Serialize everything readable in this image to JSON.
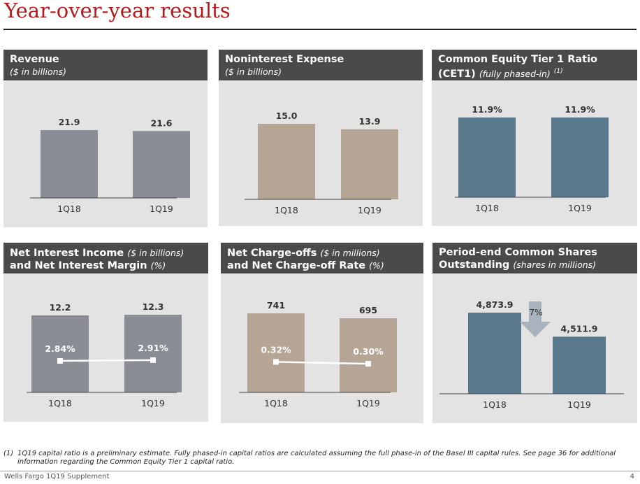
{
  "page": {
    "title": "Year-over-year results",
    "footnote_mark": "(1)",
    "footnote": "1Q19 capital ratio is a preliminary estimate. Fully phased-in capital ratios are calculated assuming the full phase-in of the Basel III capital rules. See page 36 for additional information regarding the Common Equity Tier 1 capital ratio.",
    "footer_left": "Wells Fargo 1Q19 Supplement",
    "footer_right": "4"
  },
  "panels": [
    {
      "header_line1": "Revenue",
      "header_line1_sub": "",
      "header_line2": "",
      "header_line2_sub": "($ in billions)",
      "sup": ""
    },
    {
      "header_line1": "Noninterest Expense",
      "header_line1_sub": "",
      "header_line2": "",
      "header_line2_sub": "($ in billions)",
      "sup": ""
    },
    {
      "header_line1": "Common Equity Tier 1 Ratio",
      "header_line1_sub": "",
      "header_line2": "(CET1)",
      "header_line2_sub": "(fully phased-in)",
      "sup": "(1)"
    },
    {
      "header_line1": "Net Interest Income",
      "header_line1_sub": "($ in billions)",
      "header_line2": "and Net Interest Margin",
      "header_line2_sub": "(%)",
      "sup": ""
    },
    {
      "header_line1": "Net Charge-offs",
      "header_line1_sub": "($ in millions)",
      "header_line2": "and Net Charge-off Rate",
      "header_line2_sub": "(%)",
      "sup": ""
    },
    {
      "header_line1": "Period-end Common Shares",
      "header_line1_sub": "",
      "header_line2": "Outstanding",
      "header_line2_sub": "(shares in millions)",
      "sup": ""
    }
  ],
  "colors": {
    "gray": "#8a8d93",
    "tan": "#b5a595",
    "blue": "#5a788c",
    "arrow": "#a8b3bd"
  },
  "chart_data": [
    {
      "type": "bar",
      "categories": [
        "1Q18",
        "1Q19"
      ],
      "values": [
        21.9,
        21.6
      ],
      "labels": [
        "21.9",
        "21.6"
      ],
      "ylim": [
        0,
        21.9
      ],
      "color": "gray"
    },
    {
      "type": "bar",
      "categories": [
        "1Q18",
        "1Q19"
      ],
      "values": [
        15.0,
        13.9
      ],
      "labels": [
        "15.0",
        "13.9"
      ],
      "ylim": [
        0,
        15.0
      ],
      "color": "tan"
    },
    {
      "type": "bar",
      "categories": [
        "1Q18",
        "1Q19"
      ],
      "values": [
        11.9,
        11.9
      ],
      "labels": [
        "11.9%",
        "11.9%"
      ],
      "ylim": [
        0,
        11.9
      ],
      "color": "blue"
    },
    {
      "type": "bar+line",
      "categories": [
        "1Q18",
        "1Q19"
      ],
      "values": [
        12.2,
        12.3
      ],
      "labels": [
        "12.2",
        "12.3"
      ],
      "ylim": [
        0,
        12.3
      ],
      "color": "gray",
      "line": {
        "values": [
          2.84,
          2.91
        ],
        "labels": [
          "2.84%",
          "2.91%"
        ],
        "ylim": [
          0,
          7.0
        ]
      }
    },
    {
      "type": "bar+line",
      "categories": [
        "1Q18",
        "1Q19"
      ],
      "values": [
        741,
        695
      ],
      "labels": [
        "741",
        "695"
      ],
      "ylim": [
        0,
        741
      ],
      "color": "tan",
      "line": {
        "values": [
          0.32,
          0.3
        ],
        "labels": [
          "0.32%",
          "0.30%"
        ],
        "ylim": [
          0,
          0.83
        ]
      }
    },
    {
      "type": "bar",
      "categories": [
        "1Q18",
        "1Q19"
      ],
      "values": [
        4873.9,
        4511.9
      ],
      "labels": [
        "4,873.9",
        "4,511.9"
      ],
      "ylim": [
        3650,
        4873.9
      ],
      "color": "blue",
      "arrow_label": "7%"
    }
  ]
}
